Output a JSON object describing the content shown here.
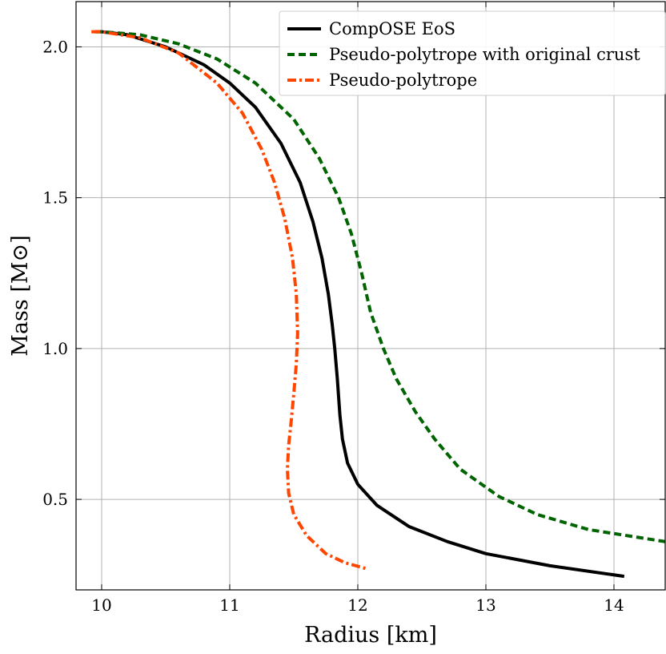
{
  "chart_data": {
    "type": "line",
    "title": "",
    "xlabel": "Radius [km]",
    "ylabel": "Mass [M⊙]",
    "xlim": [
      9.8,
      14.4
    ],
    "ylim": [
      0.2,
      2.15
    ],
    "xticks": [
      10,
      11,
      12,
      13,
      14
    ],
    "yticks": [
      0.5,
      1.0,
      1.5,
      2.0
    ],
    "xtick_labels": [
      "10",
      "11",
      "12",
      "13",
      "14"
    ],
    "ytick_labels": [
      "0.5",
      "1.0",
      "1.5",
      "2.0"
    ],
    "grid": true,
    "legend_position": "top-right",
    "series": [
      {
        "name": "CompOSE EoS",
        "color": "#000000",
        "dash": "solid",
        "x": [
          9.95,
          10.0,
          10.2,
          10.5,
          10.8,
          11.0,
          11.2,
          11.4,
          11.55,
          11.65,
          11.72,
          11.77,
          11.8,
          11.82,
          11.84,
          11.86,
          11.88,
          11.92,
          12.0,
          12.15,
          12.4,
          12.7,
          13.0,
          13.5,
          14.08
        ],
        "y": [
          2.05,
          2.05,
          2.04,
          2.0,
          1.94,
          1.88,
          1.8,
          1.68,
          1.55,
          1.42,
          1.3,
          1.18,
          1.08,
          1.0,
          0.9,
          0.78,
          0.7,
          0.62,
          0.55,
          0.48,
          0.41,
          0.36,
          0.32,
          0.28,
          0.245
        ]
      },
      {
        "name": "Pseudo-polytrope with original crust",
        "color": "#006400",
        "dash": "dashed",
        "x": [
          9.95,
          10.0,
          10.3,
          10.6,
          10.9,
          11.2,
          11.5,
          11.7,
          11.85,
          11.95,
          12.03,
          12.1,
          12.2,
          12.3,
          12.45,
          12.6,
          12.8,
          13.1,
          13.4,
          13.8,
          14.4
        ],
        "y": [
          2.05,
          2.05,
          2.04,
          2.01,
          1.96,
          1.88,
          1.76,
          1.63,
          1.5,
          1.38,
          1.25,
          1.12,
          1.0,
          0.9,
          0.79,
          0.7,
          0.6,
          0.51,
          0.45,
          0.4,
          0.36
        ]
      },
      {
        "name": "Pseudo-polytrope",
        "color": "#ff4500",
        "dash": "dash-dot",
        "x": [
          9.92,
          10.0,
          10.3,
          10.6,
          10.9,
          11.1,
          11.25,
          11.35,
          11.43,
          11.49,
          11.52,
          11.53,
          11.52,
          11.5,
          11.48,
          11.46,
          11.45,
          11.46,
          11.5,
          11.6,
          11.75,
          11.9,
          12.07
        ],
        "y": [
          2.05,
          2.05,
          2.03,
          1.98,
          1.88,
          1.78,
          1.66,
          1.55,
          1.43,
          1.3,
          1.18,
          1.05,
          0.95,
          0.85,
          0.76,
          0.68,
          0.6,
          0.52,
          0.45,
          0.38,
          0.32,
          0.29,
          0.27
        ]
      }
    ]
  }
}
